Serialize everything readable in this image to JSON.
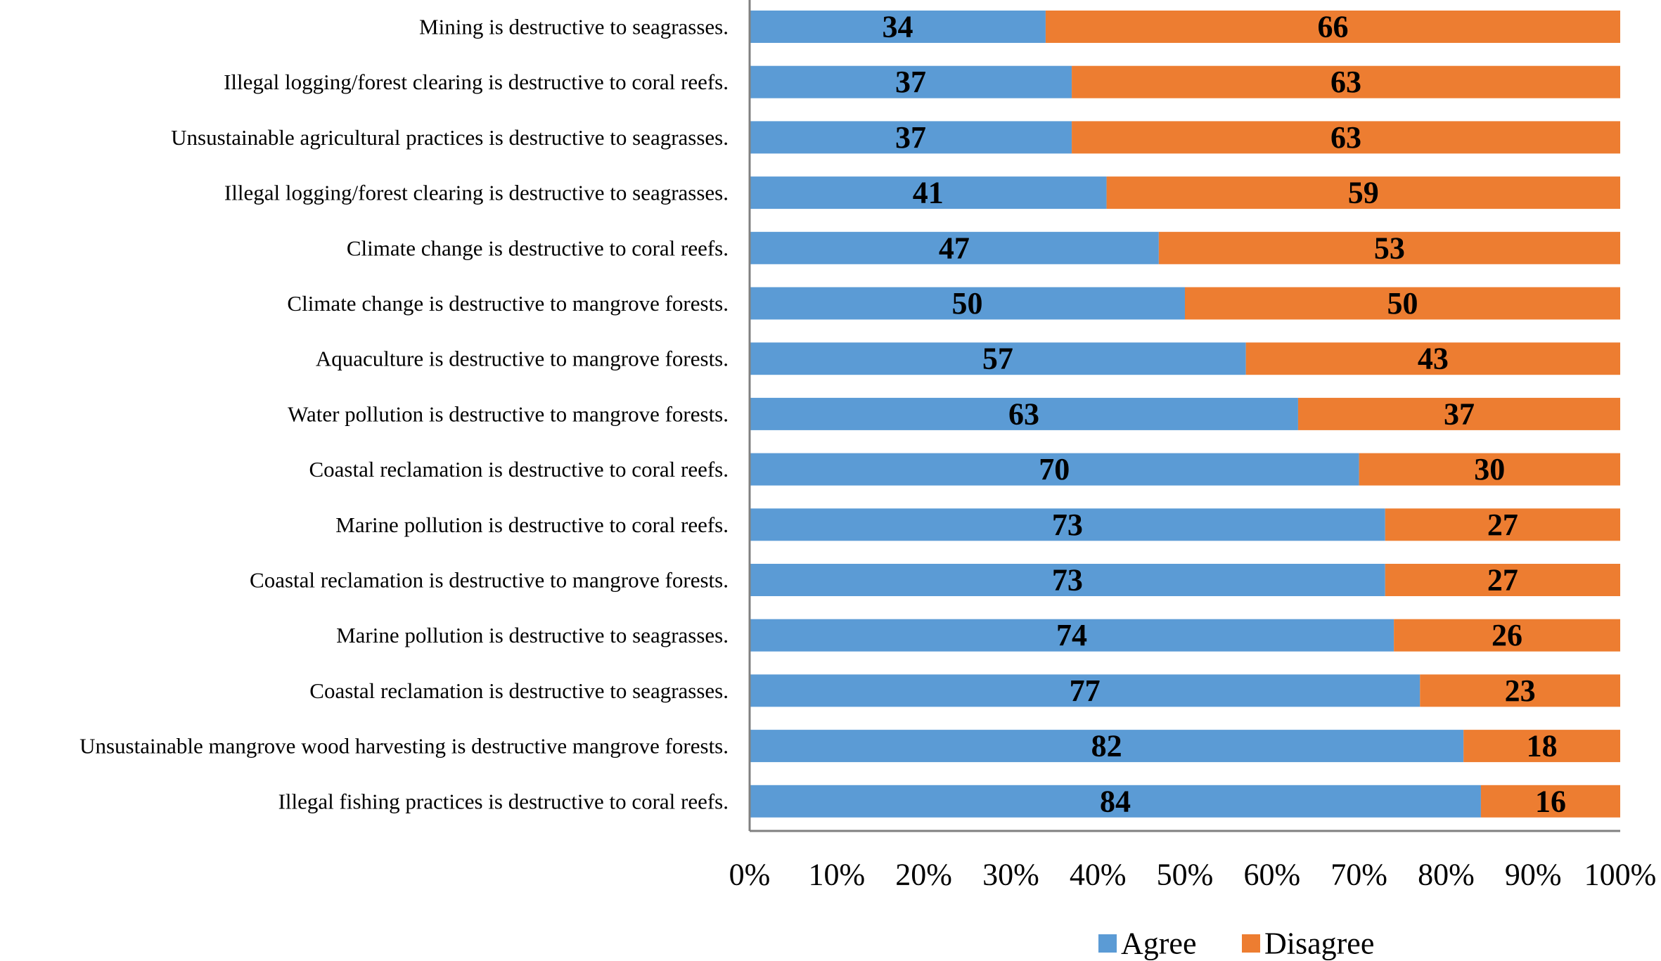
{
  "chart_data": {
    "type": "bar",
    "orientation": "horizontal",
    "stacked": "100%",
    "categories": [
      "Mining is destructive to seagrasses.",
      "Illegal logging/forest clearing is destructive to coral reefs.",
      "Unsustainable agricultural practices is destructive to seagrasses.",
      "Illegal logging/forest clearing is destructive to seagrasses.",
      "Climate change is destructive to coral reefs.",
      "Climate change is destructive to mangrove forests.",
      "Aquaculture is destructive to mangrove forests.",
      "Water pollution is destructive to mangrove forests.",
      "Coastal reclamation is destructive to coral reefs.",
      "Marine pollution is destructive to coral reefs.",
      "Coastal reclamation is destructive to mangrove forests.",
      "Marine pollution is destructive to seagrasses.",
      "Coastal reclamation is destructive to seagrasses.",
      "Unsustainable mangrove wood harvesting is destructive mangrove forests.",
      "Illegal fishing practices is destructive to coral reefs."
    ],
    "series": [
      {
        "name": "Agree",
        "color": "#5b9bd5",
        "values": [
          34,
          37,
          37,
          41,
          47,
          50,
          57,
          63,
          70,
          73,
          73,
          74,
          77,
          82,
          84
        ]
      },
      {
        "name": "Disagree",
        "color": "#ed7d31",
        "values": [
          66,
          63,
          63,
          59,
          53,
          50,
          43,
          37,
          30,
          27,
          27,
          26,
          23,
          18,
          16
        ]
      }
    ],
    "x_ticks": [
      "0%",
      "10%",
      "20%",
      "30%",
      "40%",
      "50%",
      "60%",
      "70%",
      "80%",
      "90%",
      "100%"
    ],
    "xlim": [
      0,
      100
    ],
    "grid": false,
    "legend_position": "bottom-center"
  }
}
